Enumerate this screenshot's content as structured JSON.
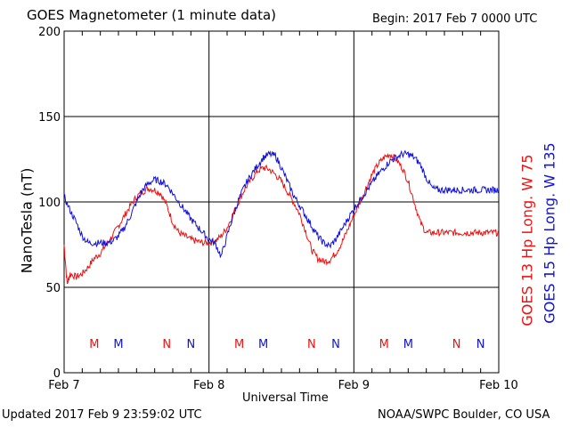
{
  "header": {
    "title": "GOES Magnetometer (1 minute data)",
    "begin": "Begin:  2017 Feb 7 0000 UTC"
  },
  "footer": {
    "updated": "Updated 2017 Feb  9 23:59:02 UTC",
    "source": "NOAA/SWPC Boulder, CO USA"
  },
  "chart_data": {
    "type": "line",
    "xlabel": "Universal Time",
    "ylabel": "NanoTesla (nT)",
    "ylim": [
      0,
      200
    ],
    "xlim": [
      0,
      72
    ],
    "x_unit": "hours since 2017 Feb 7 0000 UTC",
    "y_ticks": [
      "0",
      "50",
      "100",
      "150",
      "200"
    ],
    "y_tick_values": [
      0,
      50,
      100,
      150,
      200
    ],
    "x_ticks": [
      {
        "label": "Feb 7",
        "x": 0
      },
      {
        "label": "Feb 8",
        "x": 24
      },
      {
        "label": "Feb 9",
        "x": 48
      },
      {
        "label": "Feb 10",
        "x": 72
      }
    ],
    "grid": true,
    "series": [
      {
        "name": "GOES 13 Hp  Long. W 75",
        "color": "#ee1111",
        "x": [
          0,
          0.5,
          1,
          2,
          3,
          4,
          5,
          6,
          7,
          8,
          9,
          10,
          11,
          12,
          13,
          14,
          15,
          16,
          17,
          18,
          19,
          20,
          21,
          22,
          23,
          24,
          25,
          26,
          27,
          28,
          29,
          30,
          31,
          32,
          33,
          34,
          35,
          36,
          37,
          38,
          39,
          40,
          41,
          42,
          43,
          44,
          45,
          46,
          47,
          48,
          49,
          50,
          51,
          52,
          53,
          54,
          55,
          56,
          57,
          58,
          59,
          60,
          61,
          62,
          63,
          64,
          65,
          66,
          67,
          68,
          69,
          70,
          71,
          72
        ],
        "values": [
          75,
          52,
          58,
          56,
          58,
          62,
          67,
          70,
          75,
          80,
          86,
          92,
          98,
          103,
          106,
          108,
          107,
          105,
          98,
          88,
          82,
          80,
          78,
          77,
          76,
          76,
          77,
          80,
          85,
          93,
          101,
          108,
          113,
          118,
          120,
          119,
          116,
          112,
          106,
          100,
          93,
          83,
          72,
          67,
          65,
          66,
          70,
          76,
          84,
          92,
          100,
          108,
          116,
          122,
          126,
          128,
          125,
          120,
          112,
          100,
          88,
          82,
          82,
          82,
          82,
          82,
          82,
          82,
          82,
          82,
          82,
          82,
          82,
          82
        ],
        "markers": [
          {
            "label": "M",
            "x": 5
          },
          {
            "label": "N",
            "x": 17
          },
          {
            "label": "M",
            "x": 29
          },
          {
            "label": "N",
            "x": 41
          },
          {
            "label": "M",
            "x": 53
          },
          {
            "label": "N",
            "x": 65
          }
        ]
      },
      {
        "name": "GOES 15 Hp  Long. W 135",
        "color": "#1111dd",
        "x": [
          0,
          1,
          2,
          3,
          4,
          5,
          6,
          7,
          8,
          9,
          10,
          11,
          12,
          13,
          14,
          15,
          16,
          17,
          18,
          19,
          20,
          21,
          22,
          23,
          24,
          25,
          26,
          27,
          28,
          29,
          30,
          31,
          32,
          33,
          34,
          35,
          36,
          37,
          38,
          39,
          40,
          41,
          42,
          43,
          44,
          45,
          46,
          47,
          48,
          49,
          50,
          51,
          52,
          53,
          54,
          55,
          56,
          57,
          58,
          59,
          60,
          61,
          62,
          63,
          64,
          65,
          66,
          67,
          68,
          69,
          70,
          71,
          72
        ],
        "values": [
          103,
          95,
          88,
          80,
          76,
          76,
          76,
          76,
          77,
          80,
          85,
          92,
          100,
          107,
          111,
          113,
          112,
          110,
          105,
          100,
          95,
          90,
          86,
          82,
          78,
          76,
          68,
          80,
          92,
          102,
          110,
          116,
          121,
          126,
          128,
          127,
          120,
          112,
          104,
          98,
          92,
          86,
          80,
          76,
          74,
          78,
          84,
          90,
          96,
          101,
          106,
          111,
          116,
          120,
          124,
          126,
          128,
          128,
          126,
          122,
          114,
          108,
          107,
          107,
          107,
          107,
          107,
          107,
          107,
          107,
          107,
          107,
          107
        ],
        "markers": [
          {
            "label": "M",
            "x": 9
          },
          {
            "label": "N",
            "x": 21
          },
          {
            "label": "M",
            "x": 33
          },
          {
            "label": "N",
            "x": 45
          },
          {
            "label": "M",
            "x": 57
          },
          {
            "label": "N",
            "x": 69
          }
        ]
      }
    ]
  }
}
